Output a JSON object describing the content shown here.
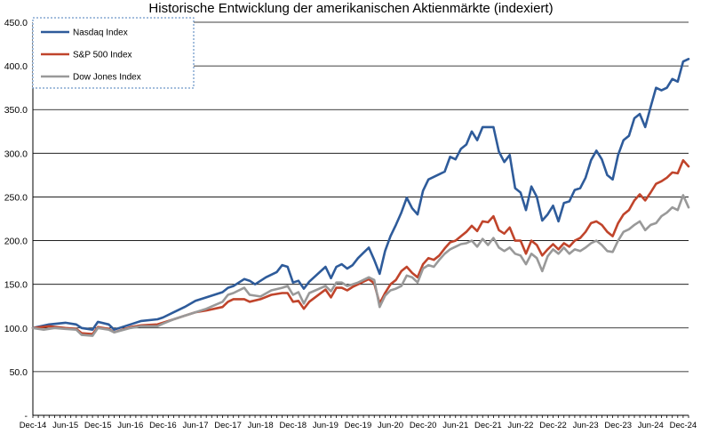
{
  "chart_data": {
    "type": "line",
    "title": "Historische Entwicklung der amerikanischen Aktienmärkte (indexiert)",
    "xlabel": "",
    "ylabel": "",
    "ylim": [
      0,
      450
    ],
    "y_tick_values": [
      0,
      50,
      100,
      150,
      200,
      250,
      300,
      350,
      400,
      450
    ],
    "y_tick_labels": [
      "-",
      "50.0",
      "100.0",
      "150.0",
      "200.0",
      "250.0",
      "300.0",
      "350.0",
      "400.0",
      "450.0"
    ],
    "x_tick_labels": [
      "Dec-14",
      "Jun-15",
      "Dec-15",
      "Jun-16",
      "Dec-16",
      "Jun-17",
      "Dec-17",
      "Jun-18",
      "Dec-18",
      "Jun-19",
      "Dec-19",
      "Jun-20",
      "Dec-20",
      "Jun-21",
      "Dec-21",
      "Jun-22",
      "Dec-22",
      "Jun-23",
      "Dec-23",
      "Jun-24",
      "Dec-24"
    ],
    "x_tick_months": [
      0,
      6,
      12,
      18,
      24,
      30,
      36,
      42,
      48,
      54,
      60,
      66,
      72,
      78,
      84,
      90,
      96,
      102,
      108,
      114,
      120
    ],
    "grid": "horizontal",
    "legend_position": "top-left",
    "series": [
      {
        "name": "Nasdaq Index",
        "color": "#2E5B9A",
        "points": [
          [
            0,
            100
          ],
          [
            3,
            104
          ],
          [
            6,
            106
          ],
          [
            8,
            104
          ],
          [
            9,
            100
          ],
          [
            11,
            98
          ],
          [
            12,
            107
          ],
          [
            14,
            104
          ],
          [
            15,
            98
          ],
          [
            18,
            104
          ],
          [
            20,
            108
          ],
          [
            23,
            110
          ],
          [
            24,
            112
          ],
          [
            26,
            118
          ],
          [
            28,
            124
          ],
          [
            30,
            131
          ],
          [
            32,
            135
          ],
          [
            35,
            141
          ],
          [
            36,
            146
          ],
          [
            37,
            148
          ],
          [
            39,
            156
          ],
          [
            40,
            154
          ],
          [
            41,
            150
          ],
          [
            43,
            158
          ],
          [
            45,
            164
          ],
          [
            46,
            172
          ],
          [
            47,
            170
          ],
          [
            48,
            152
          ],
          [
            49,
            154
          ],
          [
            50,
            145
          ],
          [
            51,
            153
          ],
          [
            54,
            170
          ],
          [
            55,
            157
          ],
          [
            56,
            170
          ],
          [
            57,
            173
          ],
          [
            58,
            168
          ],
          [
            59,
            172
          ],
          [
            60,
            180
          ],
          [
            61,
            186
          ],
          [
            62,
            192
          ],
          [
            63,
            178
          ],
          [
            64,
            162
          ],
          [
            65,
            188
          ],
          [
            66,
            205
          ],
          [
            67,
            218
          ],
          [
            68,
            232
          ],
          [
            69,
            249
          ],
          [
            70,
            237
          ],
          [
            71,
            230
          ],
          [
            72,
            257
          ],
          [
            73,
            270
          ],
          [
            75,
            276
          ],
          [
            76,
            279
          ],
          [
            77,
            296
          ],
          [
            78,
            293
          ],
          [
            79,
            305
          ],
          [
            80,
            310
          ],
          [
            81,
            325
          ],
          [
            82,
            315
          ],
          [
            83,
            330
          ],
          [
            85,
            330
          ],
          [
            86,
            302
          ],
          [
            87,
            290
          ],
          [
            88,
            298
          ],
          [
            89,
            260
          ],
          [
            90,
            255
          ],
          [
            91,
            235
          ],
          [
            92,
            262
          ],
          [
            93,
            250
          ],
          [
            94,
            223
          ],
          [
            95,
            230
          ],
          [
            96,
            240
          ],
          [
            97,
            222
          ],
          [
            98,
            243
          ],
          [
            99,
            245
          ],
          [
            100,
            258
          ],
          [
            101,
            260
          ],
          [
            102,
            272
          ],
          [
            103,
            292
          ],
          [
            104,
            303
          ],
          [
            105,
            293
          ],
          [
            106,
            275
          ],
          [
            107,
            270
          ],
          [
            108,
            298
          ],
          [
            109,
            315
          ],
          [
            110,
            320
          ],
          [
            111,
            340
          ],
          [
            112,
            345
          ],
          [
            113,
            330
          ],
          [
            114,
            353
          ],
          [
            115,
            375
          ],
          [
            116,
            372
          ],
          [
            117,
            375
          ],
          [
            118,
            385
          ],
          [
            119,
            382
          ],
          [
            120,
            405
          ],
          [
            121,
            408
          ]
        ]
      },
      {
        "name": "S&P 500 Index",
        "color": "#C0442B",
        "points": [
          [
            0,
            100
          ],
          [
            3,
            102
          ],
          [
            6,
            100
          ],
          [
            8,
            99
          ],
          [
            9,
            94
          ],
          [
            11,
            93
          ],
          [
            12,
            101
          ],
          [
            14,
            99
          ],
          [
            15,
            95
          ],
          [
            18,
            101
          ],
          [
            20,
            103
          ],
          [
            23,
            104
          ],
          [
            24,
            106
          ],
          [
            26,
            110
          ],
          [
            28,
            114
          ],
          [
            30,
            118
          ],
          [
            32,
            120
          ],
          [
            35,
            124
          ],
          [
            36,
            130
          ],
          [
            37,
            133
          ],
          [
            39,
            133
          ],
          [
            40,
            130
          ],
          [
            42,
            133
          ],
          [
            44,
            138
          ],
          [
            46,
            140
          ],
          [
            47,
            140
          ],
          [
            48,
            130
          ],
          [
            49,
            131
          ],
          [
            50,
            122
          ],
          [
            51,
            130
          ],
          [
            54,
            144
          ],
          [
            55,
            135
          ],
          [
            56,
            146
          ],
          [
            57,
            146
          ],
          [
            58,
            143
          ],
          [
            59,
            147
          ],
          [
            60,
            150
          ],
          [
            62,
            156
          ],
          [
            63,
            151
          ],
          [
            64,
            128
          ],
          [
            65,
            140
          ],
          [
            66,
            150
          ],
          [
            67,
            155
          ],
          [
            68,
            165
          ],
          [
            69,
            170
          ],
          [
            70,
            163
          ],
          [
            71,
            158
          ],
          [
            72,
            173
          ],
          [
            73,
            180
          ],
          [
            74,
            178
          ],
          [
            75,
            183
          ],
          [
            76,
            191
          ],
          [
            77,
            198
          ],
          [
            78,
            200
          ],
          [
            79,
            205
          ],
          [
            80,
            210
          ],
          [
            81,
            217
          ],
          [
            82,
            211
          ],
          [
            83,
            222
          ],
          [
            84,
            221
          ],
          [
            85,
            228
          ],
          [
            86,
            212
          ],
          [
            87,
            208
          ],
          [
            88,
            215
          ],
          [
            89,
            200
          ],
          [
            90,
            200
          ],
          [
            91,
            185
          ],
          [
            92,
            200
          ],
          [
            93,
            195
          ],
          [
            94,
            183
          ],
          [
            95,
            190
          ],
          [
            96,
            196
          ],
          [
            97,
            190
          ],
          [
            98,
            197
          ],
          [
            99,
            193
          ],
          [
            100,
            200
          ],
          [
            101,
            203
          ],
          [
            102,
            210
          ],
          [
            103,
            220
          ],
          [
            104,
            222
          ],
          [
            105,
            218
          ],
          [
            106,
            210
          ],
          [
            107,
            205
          ],
          [
            108,
            220
          ],
          [
            109,
            230
          ],
          [
            110,
            235
          ],
          [
            111,
            246
          ],
          [
            112,
            253
          ],
          [
            113,
            246
          ],
          [
            114,
            255
          ],
          [
            115,
            265
          ],
          [
            116,
            268
          ],
          [
            117,
            272
          ],
          [
            118,
            278
          ],
          [
            119,
            277
          ],
          [
            120,
            292
          ],
          [
            121,
            285
          ]
        ]
      },
      {
        "name": "Dow Jones Index",
        "color": "#999999",
        "points": [
          [
            0,
            100
          ],
          [
            2,
            98
          ],
          [
            4,
            100
          ],
          [
            6,
            99
          ],
          [
            8,
            98
          ],
          [
            9,
            92
          ],
          [
            11,
            91
          ],
          [
            12,
            100
          ],
          [
            14,
            98
          ],
          [
            15,
            95
          ],
          [
            18,
            100
          ],
          [
            20,
            102
          ],
          [
            23,
            102
          ],
          [
            24,
            105
          ],
          [
            26,
            110
          ],
          [
            28,
            114
          ],
          [
            30,
            118
          ],
          [
            32,
            122
          ],
          [
            35,
            130
          ],
          [
            36,
            138
          ],
          [
            37,
            140
          ],
          [
            39,
            146
          ],
          [
            40,
            138
          ],
          [
            42,
            136
          ],
          [
            44,
            143
          ],
          [
            46,
            146
          ],
          [
            47,
            148
          ],
          [
            48,
            138
          ],
          [
            49,
            141
          ],
          [
            50,
            128
          ],
          [
            51,
            140
          ],
          [
            54,
            148
          ],
          [
            55,
            142
          ],
          [
            56,
            152
          ],
          [
            57,
            152
          ],
          [
            58,
            148
          ],
          [
            59,
            150
          ],
          [
            60,
            152
          ],
          [
            62,
            158
          ],
          [
            63,
            155
          ],
          [
            64,
            124
          ],
          [
            65,
            137
          ],
          [
            66,
            143
          ],
          [
            67,
            145
          ],
          [
            68,
            148
          ],
          [
            69,
            160
          ],
          [
            70,
            158
          ],
          [
            71,
            152
          ],
          [
            72,
            168
          ],
          [
            73,
            172
          ],
          [
            74,
            170
          ],
          [
            75,
            178
          ],
          [
            76,
            185
          ],
          [
            77,
            190
          ],
          [
            78,
            193
          ],
          [
            79,
            196
          ],
          [
            80,
            197
          ],
          [
            81,
            200
          ],
          [
            82,
            193
          ],
          [
            83,
            202
          ],
          [
            84,
            195
          ],
          [
            85,
            203
          ],
          [
            86,
            192
          ],
          [
            87,
            188
          ],
          [
            88,
            192
          ],
          [
            89,
            185
          ],
          [
            90,
            183
          ],
          [
            91,
            173
          ],
          [
            92,
            185
          ],
          [
            93,
            180
          ],
          [
            94,
            165
          ],
          [
            95,
            182
          ],
          [
            96,
            190
          ],
          [
            97,
            185
          ],
          [
            98,
            192
          ],
          [
            99,
            185
          ],
          [
            100,
            190
          ],
          [
            101,
            188
          ],
          [
            102,
            192
          ],
          [
            103,
            197
          ],
          [
            104,
            200
          ],
          [
            105,
            195
          ],
          [
            106,
            188
          ],
          [
            107,
            187
          ],
          [
            108,
            200
          ],
          [
            109,
            210
          ],
          [
            110,
            213
          ],
          [
            111,
            218
          ],
          [
            112,
            222
          ],
          [
            113,
            212
          ],
          [
            114,
            218
          ],
          [
            115,
            220
          ],
          [
            116,
            228
          ],
          [
            117,
            232
          ],
          [
            118,
            238
          ],
          [
            119,
            235
          ],
          [
            120,
            252
          ],
          [
            121,
            238
          ]
        ]
      }
    ]
  }
}
